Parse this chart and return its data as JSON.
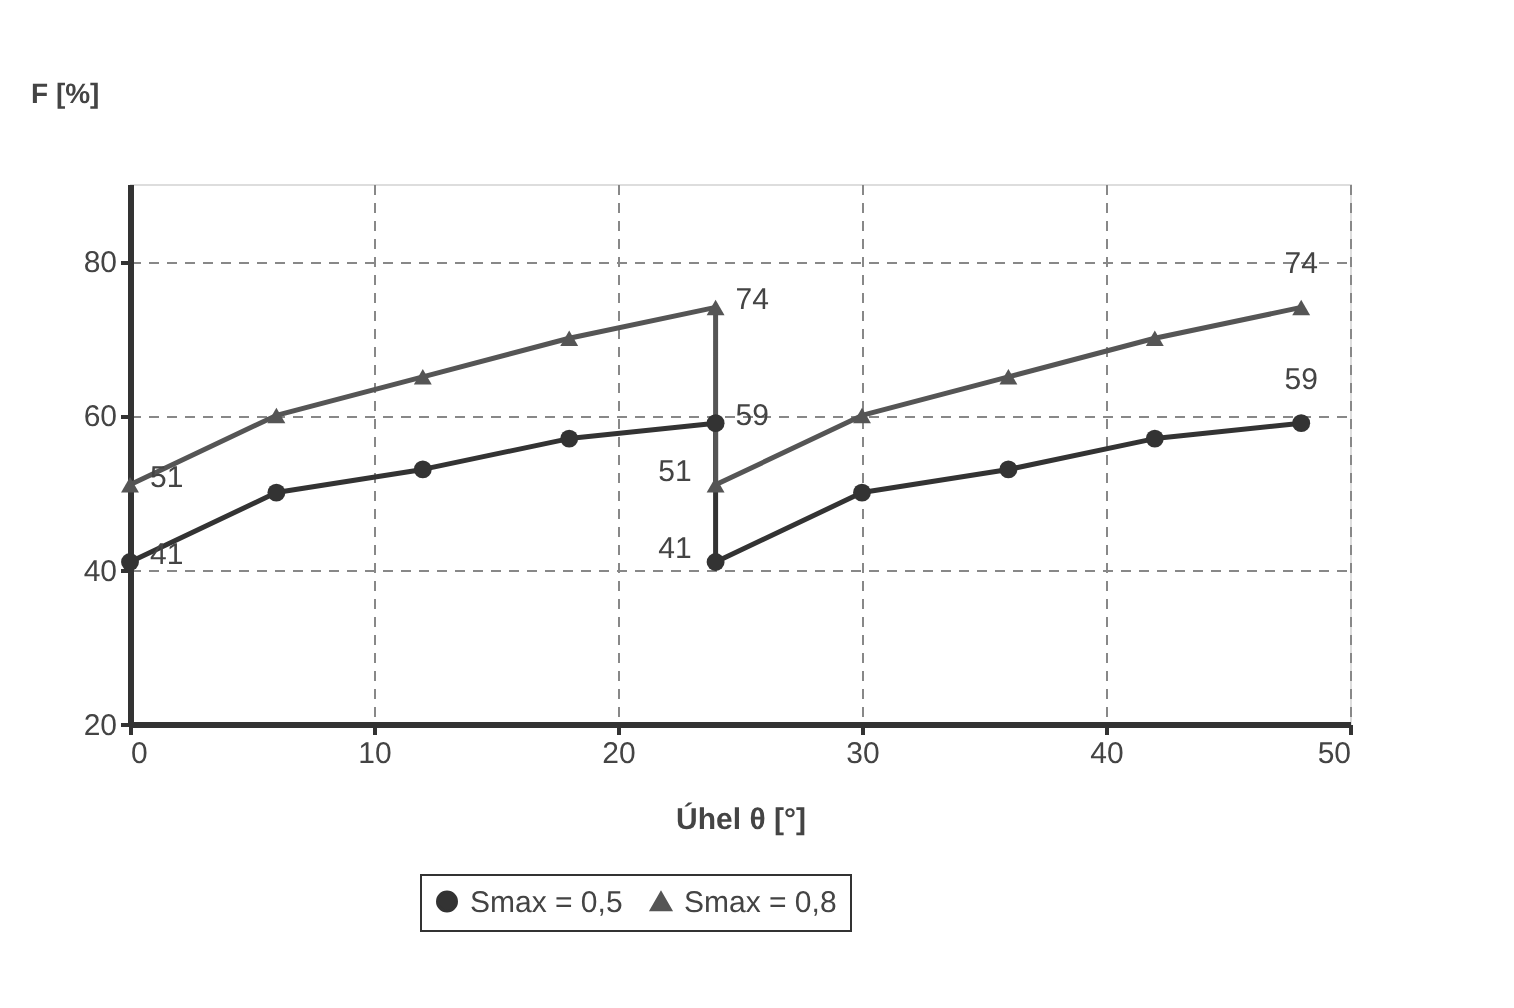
{
  "chart_data": {
    "type": "line",
    "xlabel": "Úhel θ [°]",
    "ylabel": "F [%]",
    "x": [
      0,
      6,
      12,
      18,
      24,
      24,
      30,
      36,
      42,
      48
    ],
    "xlim": [
      0,
      50
    ],
    "xticks": [
      0,
      10,
      20,
      30,
      40,
      50
    ],
    "ylim": [
      20,
      90
    ],
    "yticks": [
      20,
      40,
      60,
      80
    ],
    "grid": true,
    "legend": "bottom",
    "line_style": "solid",
    "series": [
      {
        "name": "Smax = 0,5",
        "color": "#333333",
        "marker": "circle",
        "values": [
          41,
          50,
          53,
          57,
          59,
          41,
          50,
          53,
          57,
          59
        ],
        "value_labels": [
          "41",
          null,
          null,
          null,
          "59",
          "41",
          null,
          null,
          null,
          "59"
        ]
      },
      {
        "name": "Smax = 0,8",
        "color": "#555555",
        "marker": "triangle",
        "values": [
          51,
          60,
          65,
          70,
          74,
          51,
          60,
          65,
          70,
          74
        ],
        "value_labels": [
          "51",
          null,
          null,
          null,
          "74",
          "51",
          null,
          null,
          null,
          "74"
        ]
      }
    ]
  }
}
